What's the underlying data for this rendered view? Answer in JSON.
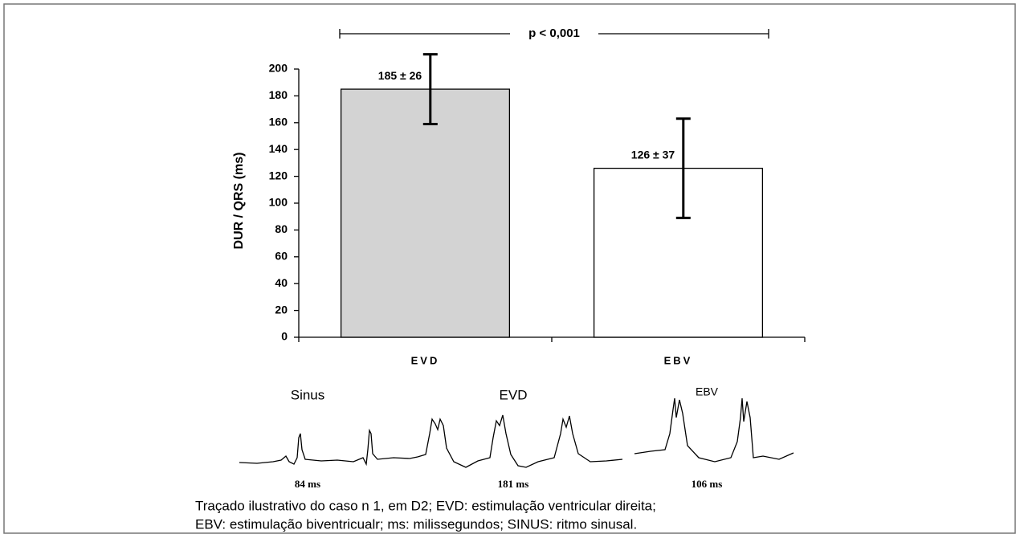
{
  "chart_data": {
    "type": "bar",
    "y_label": "DUR / QRS (ms)",
    "categories": [
      "EVD",
      "EBV"
    ],
    "values": [
      185,
      126
    ],
    "errors": [
      26,
      37
    ],
    "value_labels": [
      "185 ± 26",
      "126 ± 37"
    ],
    "colors": [
      "#d3d3d3",
      "#ffffff"
    ],
    "ylim": [
      0,
      200
    ],
    "yticks": [
      0,
      20,
      40,
      60,
      80,
      100,
      120,
      140,
      160,
      180,
      200
    ],
    "significance": "p < 0,001"
  },
  "traces": [
    {
      "label": "Sinus",
      "duration": "84 ms"
    },
    {
      "label": "EVD",
      "duration": "181 ms"
    },
    {
      "label": "EBV",
      "duration": "106 ms"
    }
  ],
  "caption": [
    "Traçado ilustrativo do caso n 1, em D2; EVD: estimulação ventricular direita;",
    "EBV: estimulação biventricualr; ms: milissegundos; SINUS: ritmo sinusal."
  ]
}
